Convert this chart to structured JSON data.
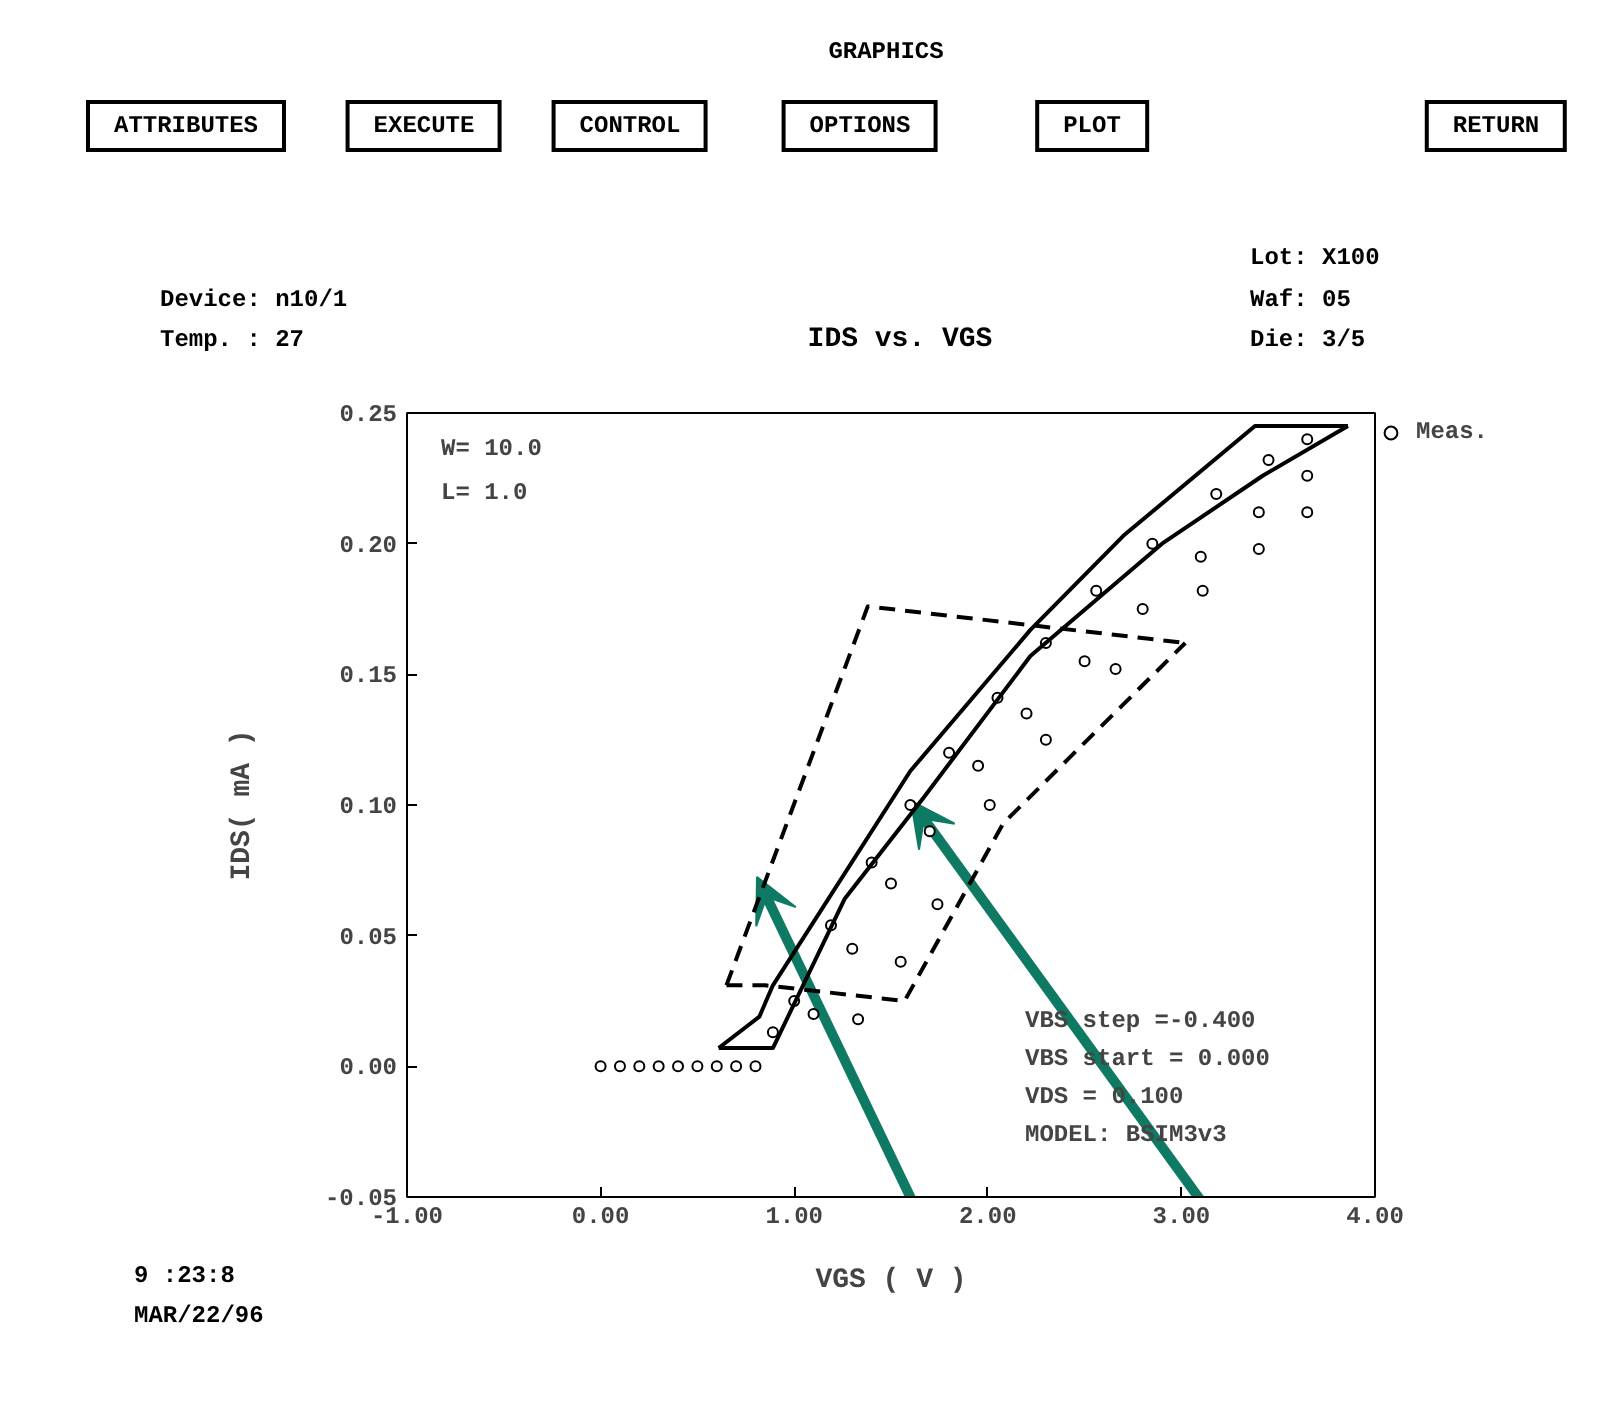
{
  "chart_data": {
    "type": "scatter",
    "title": "IDS vs. VGS",
    "xlabel": "VGS ( V )",
    "ylabel": "IDS( mA )",
    "xlim": [
      -1,
      4
    ],
    "ylim": [
      -0.05,
      0.25
    ],
    "xticks": [
      {
        "value": -1,
        "label": "-1.00"
      },
      {
        "value": 0,
        "label": "0.00"
      },
      {
        "value": 1,
        "label": "1.00"
      },
      {
        "value": 2,
        "label": "2.00"
      },
      {
        "value": 3,
        "label": "3.00"
      },
      {
        "value": 4,
        "label": "4.00"
      }
    ],
    "yticks": [
      {
        "value": -0.05,
        "label": "-0.05"
      },
      {
        "value": 0,
        "label": "0.00"
      },
      {
        "value": 0.05,
        "label": "0.05"
      },
      {
        "value": 0.1,
        "label": "0.10"
      },
      {
        "value": 0.15,
        "label": "0.15"
      },
      {
        "value": 0.2,
        "label": "0.20"
      },
      {
        "value": 0.25,
        "label": "0.25"
      }
    ],
    "grid": false,
    "legend": "top right",
    "annotations": [
      "GRAPHICS",
      "ATTRIBUTES",
      "EXECUTE",
      "CONTROL",
      "OPTIONS",
      "PLOT",
      "RETURN",
      "Device: n10/1",
      "Temp. : 27",
      "Lot: X100",
      "Waf: 05",
      "Die: 3/5",
      "W= 10.0",
      "L= 1.0",
      "VBS step  =-0.400",
      "VBS start = 0.000",
      "VDS       = 0.100",
      "MODEL: BSIM3v3",
      "9 :23:8",
      "MAR/22/96"
    ],
    "series": [
      {
        "name": "Meas.",
        "marker": "circle",
        "color": "#000000",
        "x": [
          0.0,
          0.1,
          0.2,
          0.3,
          0.4,
          0.5,
          0.6,
          0.7,
          0.8,
          0.89,
          1.0,
          1.19,
          1.4,
          1.6,
          1.8,
          2.05,
          2.3,
          2.56,
          2.85,
          3.18,
          3.45,
          3.65,
          1.1,
          1.3,
          1.5,
          1.7,
          1.95,
          2.2,
          2.5,
          2.8,
          3.1,
          3.4,
          3.65,
          1.33,
          1.55,
          1.74,
          2.01,
          2.3,
          2.66,
          3.11,
          3.4,
          3.65
        ],
        "values": [
          0,
          0,
          0,
          0,
          0,
          0,
          0,
          0,
          0,
          0.013,
          0.025,
          0.054,
          0.078,
          0.1,
          0.12,
          0.141,
          0.162,
          0.182,
          0.2,
          0.219,
          0.232,
          0.24,
          0.02,
          0.045,
          0.07,
          0.09,
          0.115,
          0.135,
          0.155,
          0.175,
          0.195,
          0.212,
          0.226,
          0.018,
          0.04,
          0.062,
          0.1,
          0.125,
          0.152,
          0.182,
          0.198,
          0.212
        ]
      },
      {
        "type": "line",
        "line_style": "solid",
        "color": "#000000",
        "x": [
          0.61,
          0.82,
          0.89,
          1.6,
          2.22,
          2.7,
          3.38,
          3.86
        ],
        "values": [
          0.007,
          0.019,
          0.031,
          0.113,
          0.167,
          0.203,
          0.245,
          0.245
        ]
      },
      {
        "type": "line",
        "line_style": "solid",
        "color": "#000000",
        "x": [
          0.61,
          0.89,
          1.26,
          1.67,
          2.22,
          2.9,
          3.42,
          3.86
        ],
        "values": [
          0.007,
          0.007,
          0.064,
          0.103,
          0.157,
          0.2,
          0.226,
          0.245
        ]
      },
      {
        "type": "line",
        "line_style": "dashed",
        "color": "#000000",
        "x": [
          0.65,
          1.38,
          3.02
        ],
        "values": [
          0.031,
          0.176,
          0.162
        ]
      },
      {
        "type": "line",
        "line_style": "dashed",
        "color": "#000000",
        "x": [
          0.65,
          0.85,
          1.57,
          2.08,
          3.02
        ],
        "values": [
          0.031,
          0.031,
          0.025,
          0.093,
          0.162
        ]
      }
    ]
  }
}
